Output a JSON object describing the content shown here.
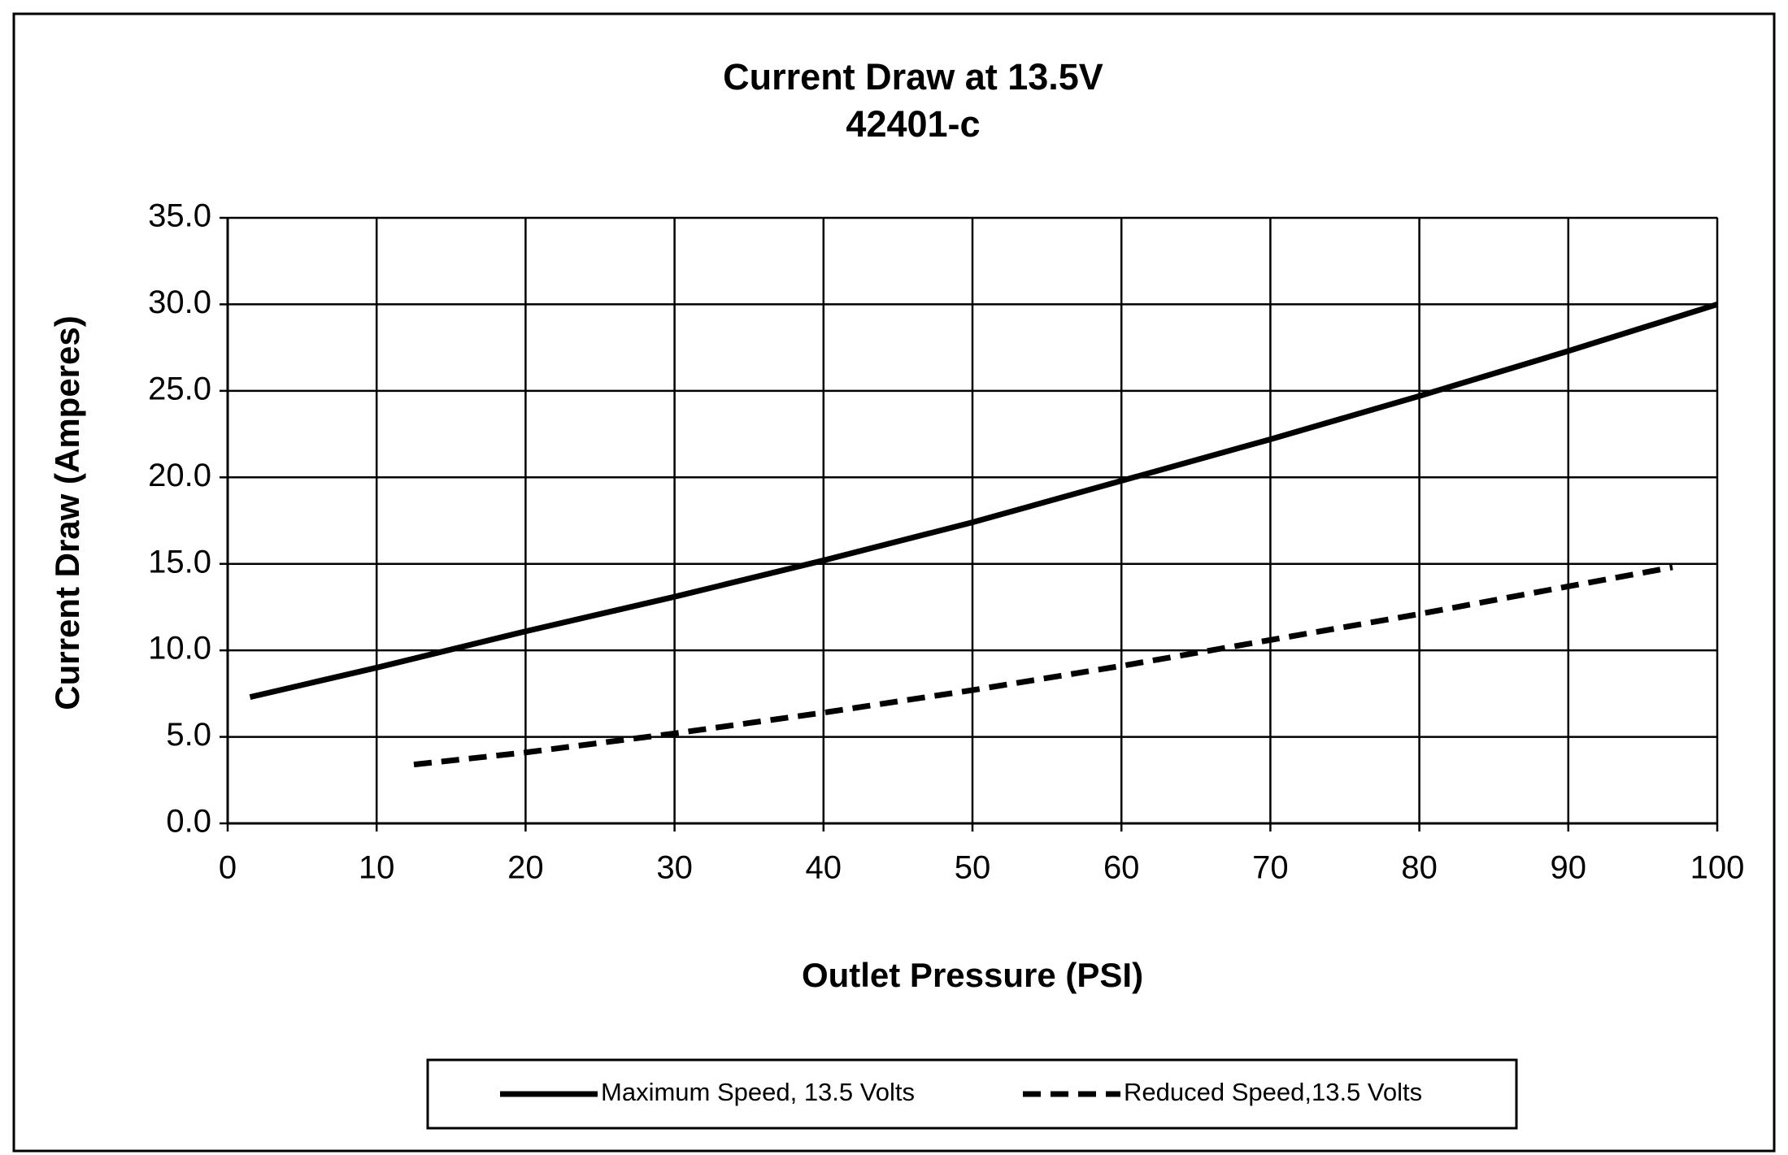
{
  "chart_data": {
    "type": "line",
    "title": "Current Draw at 13.5V",
    "subtitle": "42401-c",
    "x_label": "Outlet Pressure (PSI)",
    "y_label": "Current Draw (Amperes)",
    "xlim": [
      0,
      100
    ],
    "xticks": [
      0,
      10,
      20,
      30,
      40,
      50,
      60,
      70,
      80,
      90,
      100
    ],
    "ylim": [
      0,
      35
    ],
    "yticks": [
      {
        "value": 0,
        "label": "0.0"
      },
      {
        "value": 5,
        "label": "5.0"
      },
      {
        "value": 10,
        "label": "10.0"
      },
      {
        "value": 15,
        "label": "15.0"
      },
      {
        "value": 20,
        "label": "20.0"
      },
      {
        "value": 25,
        "label": "25.0"
      },
      {
        "value": 30,
        "label": "30.0"
      },
      {
        "value": 35,
        "label": "35.0"
      }
    ],
    "grid": true,
    "legend": "bottom",
    "series": [
      {
        "name": "Maximum Speed, 13.5 Volts",
        "color": "#000000",
        "dash": "solid",
        "x": [
          1.5,
          10,
          20,
          30,
          40,
          50,
          60,
          70,
          80,
          90,
          100
        ],
        "values": [
          7.3,
          9.0,
          11.1,
          13.1,
          15.2,
          17.4,
          19.8,
          22.2,
          24.7,
          27.3,
          30.0
        ]
      },
      {
        "name": "Reduced Speed,13.5 Volts",
        "color": "#000000",
        "dash": "dashed",
        "x": [
          12.5,
          20,
          30,
          40,
          50,
          60,
          70,
          80,
          90,
          97
        ],
        "values": [
          3.4,
          4.1,
          5.2,
          6.4,
          7.7,
          9.1,
          10.6,
          12.1,
          13.7,
          14.8
        ]
      }
    ]
  }
}
